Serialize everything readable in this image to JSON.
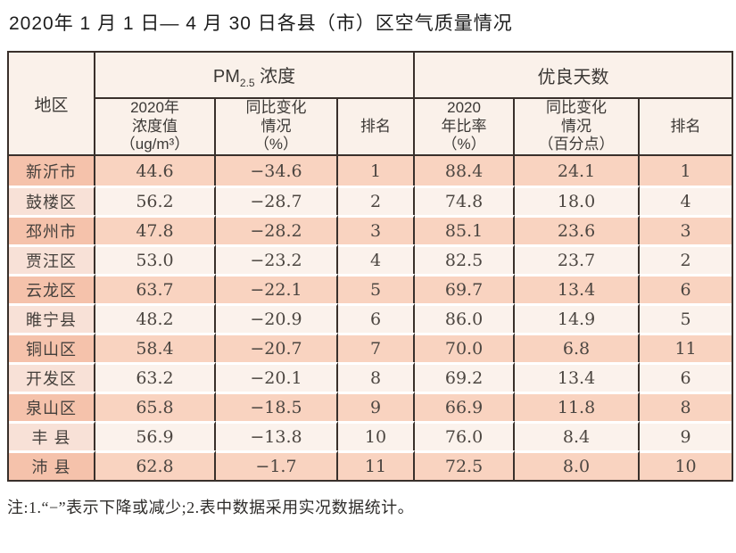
{
  "title": "2020年 1 月 1 日— 4 月 30 日各县（市）区空气质量情况",
  "table": {
    "corner_header": "地区",
    "group_pm": {
      "prefix": "PM",
      "sub": "2.5",
      "suffix": " 浓度"
    },
    "group_days": "优良天数",
    "subheaders": {
      "pm_value": "2020年\n浓度值\n（ug/m³）",
      "pm_change": "同比变化\n情况\n（%）",
      "pm_rank": "排名",
      "days_rate": "2020\n年比率\n（%）",
      "days_change": "同比变化\n情况\n（百分点）",
      "days_rank": "排名"
    },
    "rows": [
      {
        "region": "新沂市",
        "pm_value": "44.6",
        "pm_change": "−34.6",
        "pm_rank": "1",
        "days_rate": "88.4",
        "days_change": "24.1",
        "days_rank": "1"
      },
      {
        "region": "鼓楼区",
        "pm_value": "56.2",
        "pm_change": "−28.7",
        "pm_rank": "2",
        "days_rate": "74.8",
        "days_change": "18.0",
        "days_rank": "4"
      },
      {
        "region": "邳州市",
        "pm_value": "47.8",
        "pm_change": "−28.2",
        "pm_rank": "3",
        "days_rate": "85.1",
        "days_change": "23.6",
        "days_rank": "3"
      },
      {
        "region": "贾汪区",
        "pm_value": "53.0",
        "pm_change": "−23.2",
        "pm_rank": "4",
        "days_rate": "82.5",
        "days_change": "23.7",
        "days_rank": "2"
      },
      {
        "region": "云龙区",
        "pm_value": "63.7",
        "pm_change": "−22.1",
        "pm_rank": "5",
        "days_rate": "69.7",
        "days_change": "13.4",
        "days_rank": "6"
      },
      {
        "region": "睢宁县",
        "pm_value": "48.2",
        "pm_change": "−20.9",
        "pm_rank": "6",
        "days_rate": "86.0",
        "days_change": "14.9",
        "days_rank": "5"
      },
      {
        "region": "铜山区",
        "pm_value": "58.4",
        "pm_change": "−20.7",
        "pm_rank": "7",
        "days_rate": "70.0",
        "days_change": "6.8",
        "days_rank": "11"
      },
      {
        "region": "开发区",
        "pm_value": "63.2",
        "pm_change": "−20.1",
        "pm_rank": "8",
        "days_rate": "69.2",
        "days_change": "13.4",
        "days_rank": "6"
      },
      {
        "region": "泉山区",
        "pm_value": "65.8",
        "pm_change": "−18.5",
        "pm_rank": "9",
        "days_rate": "66.9",
        "days_change": "11.8",
        "days_rank": "8"
      },
      {
        "region": "丰 县",
        "pm_value": "56.9",
        "pm_change": "−13.8",
        "pm_rank": "10",
        "days_rate": "76.0",
        "days_change": "8.4",
        "days_rank": "9"
      },
      {
        "region": "沛 县",
        "pm_value": "62.8",
        "pm_change": "−1.7",
        "pm_rank": "11",
        "days_rate": "72.5",
        "days_change": "8.0",
        "days_rank": "10"
      }
    ]
  },
  "note": "注:1.“−”表示下降或减少;2.表中数据采用实况数据统计。",
  "colors": {
    "border": "#39302b",
    "header_bg": "#faf1ea",
    "row_odd_bg": "#f9d3c0",
    "row_odd_region_bg": "#f5c2ab",
    "row_even_bg": "#fbf2ec",
    "row_even_region_bg": "#f8e1d7"
  }
}
